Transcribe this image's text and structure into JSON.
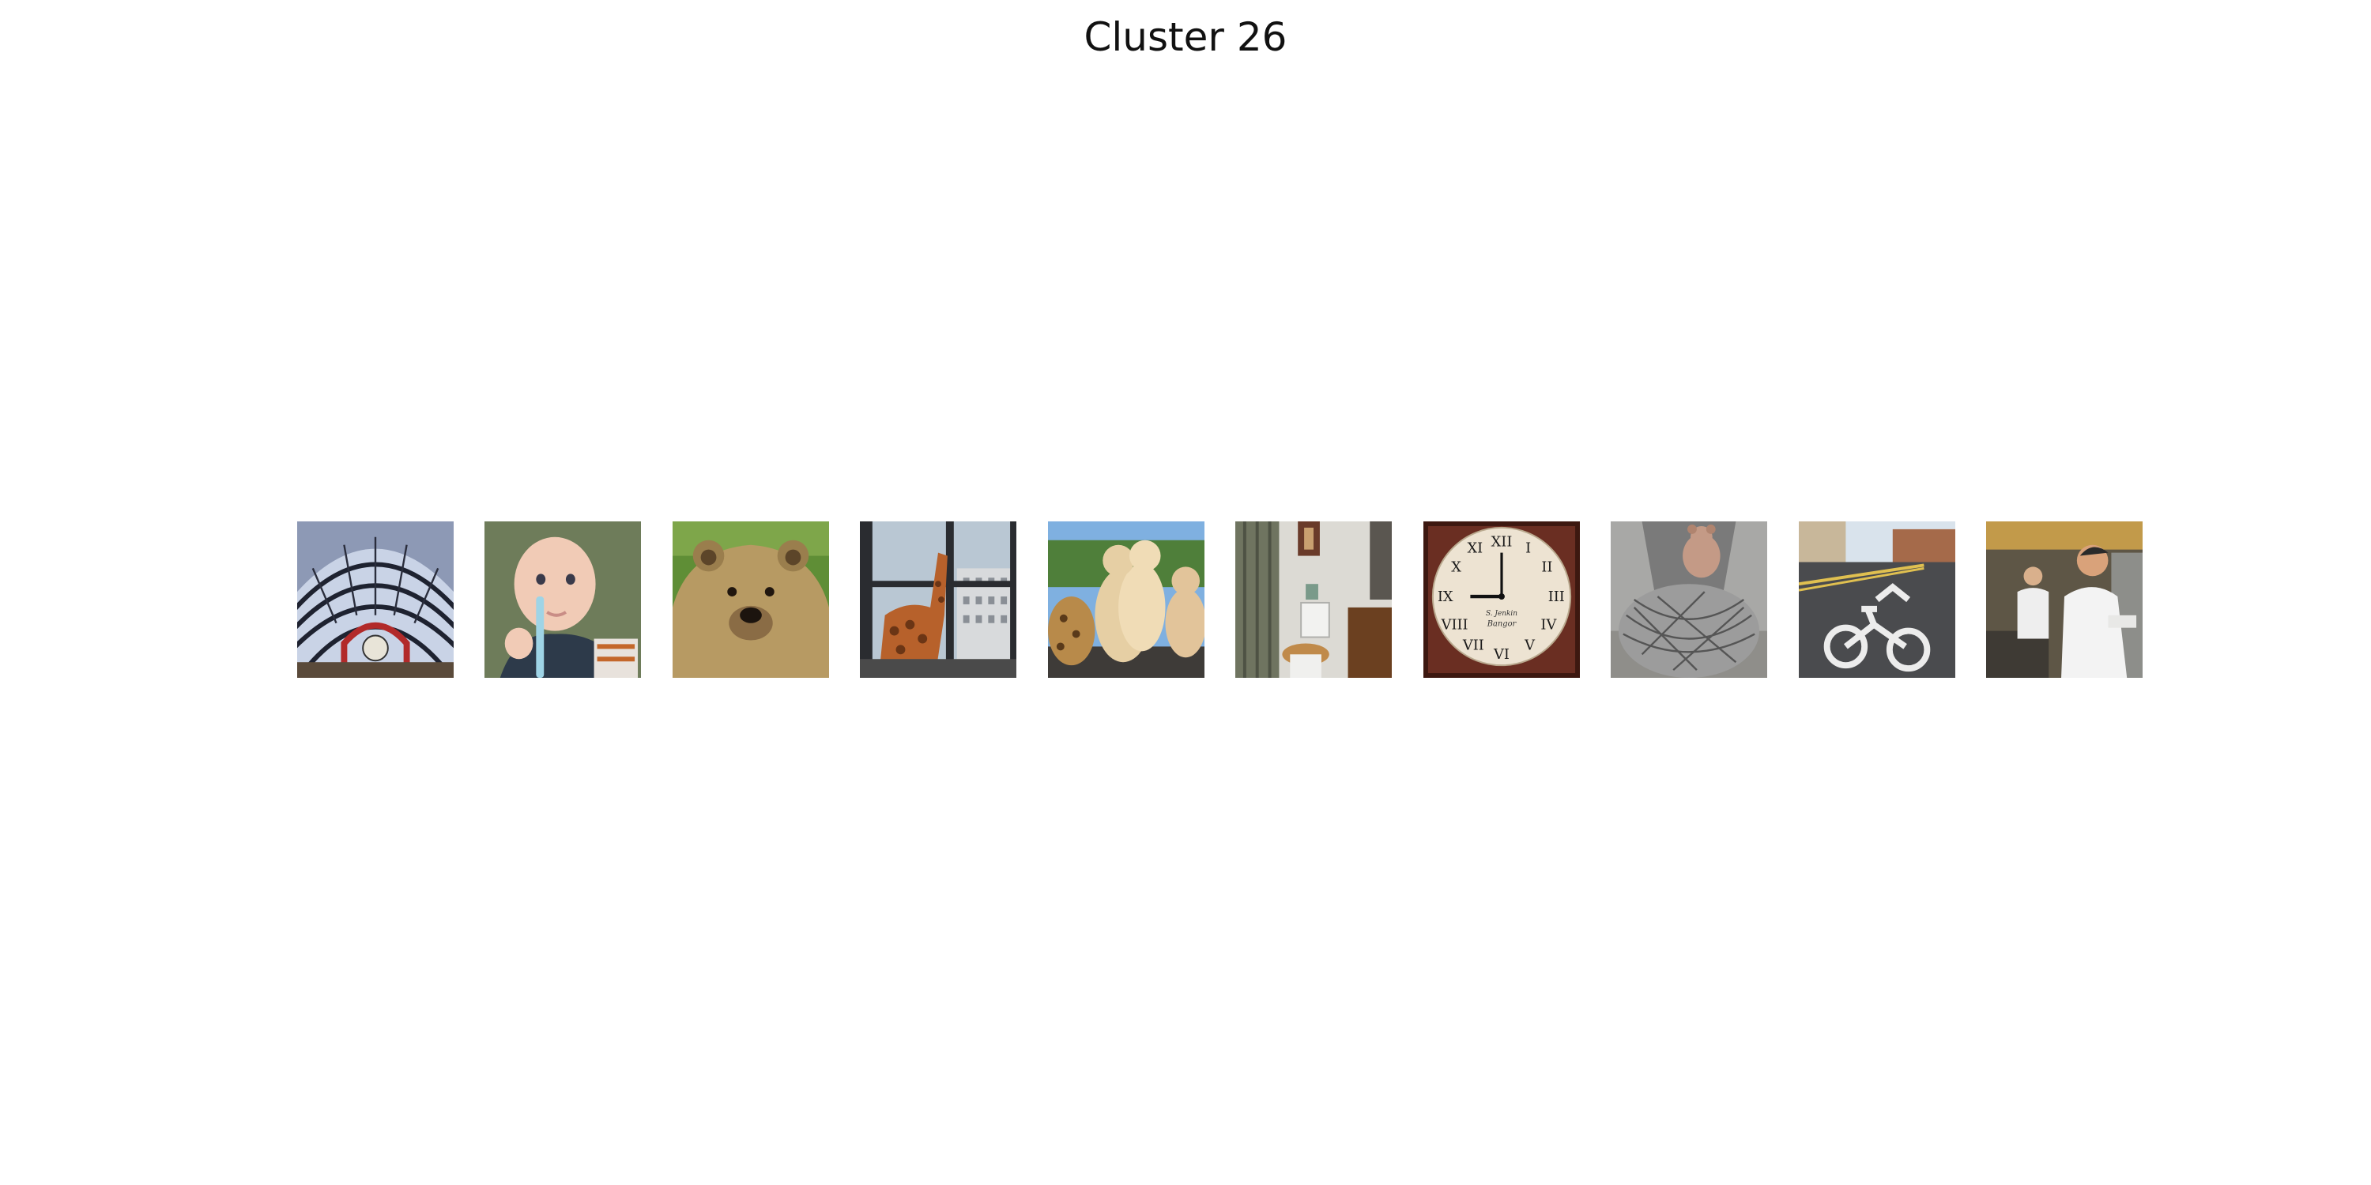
{
  "figure": {
    "title": "Cluster 26"
  },
  "thumbnails": [
    {
      "index": 1,
      "subject": "glass-dome-train-station"
    },
    {
      "index": 2,
      "subject": "baby-with-toothbrush"
    },
    {
      "index": 3,
      "subject": "brown-bear"
    },
    {
      "index": 4,
      "subject": "giraffe-statue-at-window"
    },
    {
      "index": 5,
      "subject": "stuffed-animals"
    },
    {
      "index": 6,
      "subject": "bathroom-toilet"
    },
    {
      "index": 7,
      "subject": "wall-clock"
    },
    {
      "index": 8,
      "subject": "teddy-bear-on-metal-chair"
    },
    {
      "index": 9,
      "subject": "bike-lane-road-marking"
    },
    {
      "index": 10,
      "subject": "chefs-in-kitchen"
    }
  ],
  "clock_text": {
    "line1": "S. Jenkin",
    "line2": "Bangor"
  }
}
